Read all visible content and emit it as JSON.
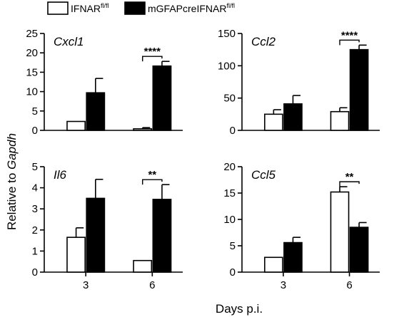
{
  "legend": [
    {
      "label": "IFNAR",
      "sup": "fl/fl",
      "color": "#ffffff"
    },
    {
      "label": "mGFAPcreIFNAR",
      "sup": "fl/fl",
      "color": "#000000"
    }
  ],
  "ylabel": {
    "prefix": "Relative to ",
    "gene": "Gapdh"
  },
  "xlabel": "Days p.i.",
  "chart_data": [
    {
      "type": "bar",
      "gene": "Cxcl1",
      "categories": [
        "3",
        "6"
      ],
      "ylim": [
        0,
        25
      ],
      "yticks": [
        0,
        5,
        10,
        15,
        20,
        25
      ],
      "series": [
        {
          "name": "IFNAR fl/fl",
          "values": [
            2.3,
            0.4
          ],
          "errors": [
            0,
            0.3
          ]
        },
        {
          "name": "mGFAPcreIFNAR fl/fl",
          "values": [
            9.7,
            16.6
          ],
          "errors": [
            3.7,
            1.2
          ]
        }
      ],
      "significance": {
        "category": "6",
        "label": "****"
      }
    },
    {
      "type": "bar",
      "gene": "Ccl2",
      "categories": [
        "3",
        "6"
      ],
      "ylim": [
        0,
        150
      ],
      "yticks": [
        0,
        50,
        100,
        150
      ],
      "series": [
        {
          "name": "IFNAR fl/fl",
          "values": [
            25,
            29
          ],
          "errors": [
            7,
            6
          ]
        },
        {
          "name": "mGFAPcreIFNAR fl/fl",
          "values": [
            41,
            125
          ],
          "errors": [
            13,
            7
          ]
        }
      ],
      "significance": {
        "category": "6",
        "label": "****"
      }
    },
    {
      "type": "bar",
      "gene": "Il6",
      "categories": [
        "3",
        "6"
      ],
      "ylim": [
        0,
        5
      ],
      "yticks": [
        0,
        1,
        2,
        3,
        4,
        5
      ],
      "series": [
        {
          "name": "IFNAR fl/fl",
          "values": [
            1.65,
            0.55
          ],
          "errors": [
            0.45,
            0
          ]
        },
        {
          "name": "mGFAPcreIFNAR fl/fl",
          "values": [
            3.5,
            3.45
          ],
          "errors": [
            0.9,
            0.7
          ]
        }
      ],
      "significance": {
        "category": "6",
        "label": "**"
      }
    },
    {
      "type": "bar",
      "gene": "Ccl5",
      "categories": [
        "3",
        "6"
      ],
      "ylim": [
        0,
        20
      ],
      "yticks": [
        0,
        5,
        10,
        15,
        20
      ],
      "series": [
        {
          "name": "IFNAR fl/fl",
          "values": [
            2.8,
            15.2
          ],
          "errors": [
            0,
            1.0
          ]
        },
        {
          "name": "mGFAPcreIFNAR fl/fl",
          "values": [
            5.6,
            8.5
          ],
          "errors": [
            1.0,
            0.9
          ]
        }
      ],
      "significance": {
        "category": "6",
        "label": "**"
      }
    }
  ]
}
